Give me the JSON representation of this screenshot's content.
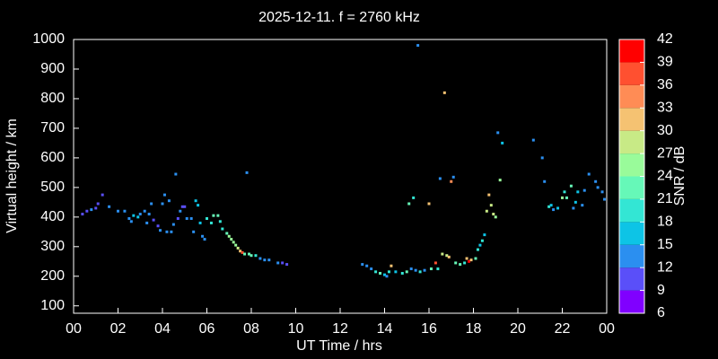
{
  "chart_data": {
    "type": "scatter",
    "title": "2025-12-11. f = 2760 kHz",
    "x_label": "UT Time / hrs",
    "y_label": "Virtual height / km",
    "xlim": [
      0,
      24
    ],
    "ylim": [
      75,
      1000
    ],
    "xticks": [
      {
        "value": 0,
        "label": "00"
      },
      {
        "value": 2,
        "label": "02"
      },
      {
        "value": 4,
        "label": "04"
      },
      {
        "value": 6,
        "label": "06"
      },
      {
        "value": 8,
        "label": "08"
      },
      10,
      12,
      14,
      16,
      18,
      20,
      22,
      {
        "value": 24,
        "label": "00"
      }
    ],
    "yticks": [
      100,
      200,
      300,
      400,
      500,
      600,
      700,
      800,
      900,
      1000
    ],
    "colorbar": {
      "label": "SNR / dB",
      "ticks": [
        6,
        9,
        12,
        15,
        18,
        21,
        24,
        27,
        30,
        33,
        36,
        39,
        42
      ],
      "colors": [
        "#8000ff",
        "#5a4ff9",
        "#2b8ff0",
        "#0dc4e6",
        "#33e6d4",
        "#66f8b8",
        "#99fb9a",
        "#c8ea86",
        "#f5c272",
        "#ff8c55",
        "#ff5030",
        "#ff0000"
      ]
    },
    "x": [
      0.4,
      0.6,
      0.8,
      1.0,
      1.1,
      1.3,
      1.6,
      2.0,
      2.3,
      2.5,
      2.6,
      2.7,
      2.9,
      3.0,
      3.2,
      3.3,
      3.4,
      3.5,
      3.6,
      3.8,
      3.9,
      4.0,
      4.1,
      4.2,
      4.3,
      4.4,
      4.5,
      4.6,
      4.7,
      4.8,
      4.9,
      5.0,
      5.1,
      5.3,
      5.4,
      5.5,
      5.6,
      5.7,
      5.8,
      5.9,
      6.0,
      6.2,
      6.3,
      6.5,
      6.6,
      6.7,
      6.9,
      7.0,
      7.1,
      7.2,
      7.3,
      7.4,
      7.5,
      7.6,
      7.7,
      7.8,
      7.9,
      8.0,
      8.2,
      8.4,
      8.6,
      8.8,
      9.2,
      9.4,
      9.6,
      13.0,
      13.2,
      13.4,
      13.6,
      13.8,
      14.0,
      14.1,
      14.2,
      14.3,
      14.5,
      14.8,
      15.0,
      15.1,
      15.2,
      15.3,
      15.4,
      15.5,
      15.6,
      15.8,
      16.0,
      16.1,
      16.3,
      16.4,
      16.5,
      16.6,
      16.7,
      16.8,
      16.9,
      17.0,
      17.1,
      17.2,
      17.4,
      17.6,
      17.7,
      17.8,
      17.9,
      18.1,
      18.2,
      18.3,
      18.4,
      18.5,
      18.6,
      18.7,
      18.8,
      18.9,
      19.0,
      19.1,
      19.2,
      19.3,
      20.7,
      21.1,
      21.2,
      21.4,
      21.5,
      21.6,
      21.8,
      22.0,
      22.1,
      22.2,
      22.4,
      22.5,
      22.6,
      22.7,
      22.9,
      23.0,
      23.2,
      23.5,
      23.6,
      23.8,
      23.9
    ],
    "values": [
      410,
      420,
      425,
      430,
      445,
      475,
      435,
      420,
      420,
      395,
      385,
      405,
      400,
      410,
      420,
      380,
      410,
      445,
      390,
      370,
      355,
      445,
      475,
      350,
      455,
      350,
      375,
      545,
      395,
      420,
      435,
      435,
      395,
      395,
      350,
      455,
      440,
      380,
      335,
      325,
      395,
      380,
      405,
      405,
      385,
      360,
      345,
      335,
      325,
      315,
      305,
      295,
      285,
      280,
      275,
      550,
      275,
      270,
      270,
      260,
      255,
      255,
      245,
      245,
      240,
      240,
      235,
      225,
      215,
      210,
      205,
      200,
      215,
      235,
      215,
      210,
      215,
      445,
      225,
      465,
      220,
      980,
      215,
      220,
      445,
      225,
      245,
      225,
      530,
      275,
      820,
      270,
      265,
      520,
      535,
      245,
      240,
      245,
      260,
      250,
      255,
      260,
      290,
      305,
      320,
      340,
      420,
      475,
      440,
      410,
      400,
      685,
      525,
      650,
      660,
      600,
      520,
      435,
      440,
      425,
      430,
      465,
      485,
      465,
      505,
      430,
      450,
      485,
      440,
      490,
      545,
      520,
      500,
      485,
      460
    ],
    "snr": [
      10,
      10,
      12,
      10,
      10,
      10,
      12,
      12,
      12,
      13,
      14,
      16,
      16,
      12,
      13,
      12,
      12,
      13,
      11,
      11,
      12,
      12,
      12,
      13,
      12,
      12,
      12,
      12,
      11,
      12,
      10,
      10,
      12,
      12,
      13,
      15,
      16,
      17,
      14,
      13,
      20,
      20,
      22,
      21,
      20,
      20,
      22,
      24,
      25,
      24,
      26,
      27,
      31,
      36,
      22,
      12,
      23,
      22,
      20,
      14,
      12,
      12,
      12,
      10,
      10,
      13,
      14,
      13,
      20,
      22,
      16,
      13,
      20,
      30,
      16,
      18,
      21,
      22,
      14,
      20,
      14,
      14,
      18,
      14,
      31,
      22,
      36,
      18,
      13,
      29,
      31,
      28,
      30,
      33,
      12,
      21,
      21,
      20,
      30,
      39,
      32,
      22,
      18,
      17,
      18,
      16,
      29,
      32,
      29,
      28,
      26,
      12,
      24,
      15,
      12,
      13,
      13,
      18,
      15,
      12,
      16,
      24,
      20,
      22,
      21,
      13,
      16,
      15,
      13,
      14,
      12,
      12,
      13,
      14,
      13
    ]
  }
}
